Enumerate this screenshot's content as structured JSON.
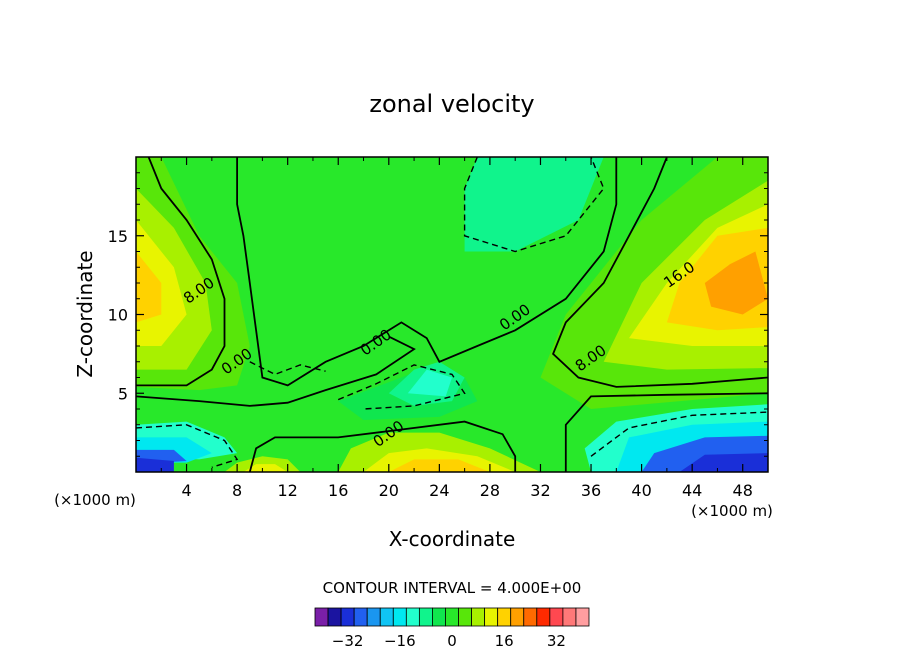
{
  "chart_data": {
    "type": "heatmap",
    "title": "zonal velocity",
    "xlabel": "X-coordinate",
    "ylabel": "Z-coordinate",
    "x_unit_note": "(×1000 m)",
    "x_unit_note_right": "(×1000 m)",
    "xlim": [
      0,
      50
    ],
    "ylim": [
      0,
      20
    ],
    "x_ticks": [
      4,
      8,
      12,
      16,
      20,
      24,
      28,
      32,
      36,
      40,
      44,
      48
    ],
    "x_tick_labels": [
      "4",
      "8",
      "12",
      "16",
      "20",
      "24",
      "28",
      "32",
      "36",
      "40",
      "44",
      "48"
    ],
    "y_ticks": [
      5,
      10,
      15
    ],
    "y_tick_labels": [
      "5",
      "10",
      "15"
    ],
    "contour_interval_text": "CONTOUR INTERVAL = 4.000E+00",
    "contour_labels": [
      {
        "text": "8.00",
        "x": 5.0,
        "y": 11.5
      },
      {
        "text": "0.00",
        "x": 8.0,
        "y": 7.0
      },
      {
        "text": "0.00",
        "x": 19.0,
        "y": 8.2
      },
      {
        "text": "0.00",
        "x": 20.0,
        "y": 2.4
      },
      {
        "text": "0.00",
        "x": 30.0,
        "y": 9.8
      },
      {
        "text": "8.00",
        "x": 36.0,
        "y": 7.2
      },
      {
        "text": "16.0",
        "x": 43.0,
        "y": 12.5
      }
    ],
    "color_levels": [
      -40,
      -36,
      -32,
      -28,
      -24,
      -20,
      -16,
      -12,
      -8,
      -4,
      0,
      4,
      8,
      12,
      16,
      20,
      24,
      28,
      32,
      36,
      40
    ],
    "colorbar_colors": [
      "#7a1fa8",
      "#1b14a0",
      "#1a2fd8",
      "#2160f0",
      "#1a96f0",
      "#10c4f4",
      "#00e8f0",
      "#22ffcc",
      "#10f48c",
      "#10e64e",
      "#28e82a",
      "#58e60a",
      "#a8f000",
      "#e8f400",
      "#ffd200",
      "#ffa000",
      "#ff6a00",
      "#ff2a00",
      "#ff4850",
      "#ff7878",
      "#ff9ea0"
    ],
    "colorbar_tick_labels": [
      "-32",
      "-16",
      "0",
      "16",
      "32"
    ],
    "colorbar_tick_values": [
      -32,
      -16,
      0,
      16,
      32
    ],
    "regions": [
      {
        "level": 4,
        "color": "#28e82a",
        "desc": "background"
      },
      {
        "level": 8,
        "color": "#58e60a",
        "polygon": [
          [
            0,
            20
          ],
          [
            2,
            20
          ],
          [
            5,
            15
          ],
          [
            8,
            12
          ],
          [
            9,
            8
          ],
          [
            8,
            5.5
          ],
          [
            5,
            5.2
          ],
          [
            0,
            5.4
          ]
        ]
      },
      {
        "level": 12,
        "color": "#a8f000",
        "polygon": [
          [
            0,
            18
          ],
          [
            3,
            15.5
          ],
          [
            5.5,
            12
          ],
          [
            6,
            9
          ],
          [
            4,
            6.5
          ],
          [
            0,
            6.5
          ]
        ]
      },
      {
        "level": 16,
        "color": "#e8f400",
        "polygon": [
          [
            0,
            16
          ],
          [
            3,
            13
          ],
          [
            4,
            10
          ],
          [
            2,
            8
          ],
          [
            0,
            8
          ]
        ]
      },
      {
        "level": 20,
        "color": "#ffd200",
        "polygon": [
          [
            0,
            14
          ],
          [
            2,
            12
          ],
          [
            2,
            10
          ],
          [
            0,
            9.5
          ]
        ]
      },
      {
        "level": 8,
        "color": "#58e60a",
        "polygon": [
          [
            50,
            20
          ],
          [
            46,
            20
          ],
          [
            40,
            16
          ],
          [
            34,
            10
          ],
          [
            32,
            6
          ],
          [
            36,
            4
          ],
          [
            50,
            5
          ]
        ]
      },
      {
        "level": 12,
        "color": "#a8f000",
        "polygon": [
          [
            50,
            18.5
          ],
          [
            45,
            16
          ],
          [
            40,
            12
          ],
          [
            37,
            7
          ],
          [
            42,
            6.5
          ],
          [
            50,
            6.6
          ]
        ]
      },
      {
        "level": 16,
        "color": "#e8f400",
        "polygon": [
          [
            50,
            17
          ],
          [
            46,
            15.5
          ],
          [
            42,
            12
          ],
          [
            39,
            8.5
          ],
          [
            44,
            8
          ],
          [
            50,
            8
          ]
        ]
      },
      {
        "level": 20,
        "color": "#ffd200",
        "polygon": [
          [
            50,
            15.5
          ],
          [
            46,
            15
          ],
          [
            43,
            12
          ],
          [
            42,
            9.5
          ],
          [
            46,
            9
          ],
          [
            50,
            9.2
          ]
        ]
      },
      {
        "level": 24,
        "color": "#ffa000",
        "polygon": [
          [
            49,
            14
          ],
          [
            47,
            13.2
          ],
          [
            45,
            12
          ],
          [
            45.5,
            10.5
          ],
          [
            48,
            10
          ],
          [
            50,
            11
          ]
        ]
      },
      {
        "level": 0,
        "color": "#10e64e",
        "polygon": [
          [
            16,
            4.5
          ],
          [
            21,
            6
          ],
          [
            24,
            7
          ],
          [
            26,
            6
          ],
          [
            27,
            4.5
          ],
          [
            24,
            3.5
          ],
          [
            18,
            3.3
          ]
        ]
      },
      {
        "level": -4,
        "color": "#10f48c",
        "polygon": [
          [
            27,
            20
          ],
          [
            37,
            20
          ],
          [
            35,
            16
          ],
          [
            30,
            14
          ],
          [
            26,
            14
          ],
          [
            26,
            18
          ]
        ]
      },
      {
        "level": -4,
        "color": "#10f48c",
        "polygon": [
          [
            20,
            5
          ],
          [
            22,
            6.5
          ],
          [
            24,
            7
          ],
          [
            26,
            6
          ],
          [
            25,
            4.5
          ],
          [
            22,
            4.2
          ]
        ]
      },
      {
        "level": -8,
        "color": "#22ffcc",
        "polygon": [
          [
            21.5,
            5
          ],
          [
            23,
            6.5
          ],
          [
            25,
            6
          ],
          [
            24.5,
            4.8
          ]
        ]
      },
      {
        "level": -8,
        "color": "#22ffcc",
        "polygon": [
          [
            0,
            3
          ],
          [
            4,
            3.2
          ],
          [
            7,
            2.2
          ],
          [
            8,
            1.2
          ],
          [
            5,
            0.8
          ],
          [
            0,
            1
          ]
        ]
      },
      {
        "level": -16,
        "color": "#00e8f0",
        "polygon": [
          [
            0,
            2.2
          ],
          [
            4,
            2.2
          ],
          [
            6,
            1.2
          ],
          [
            4,
            0.6
          ],
          [
            0,
            0.6
          ]
        ]
      },
      {
        "level": -24,
        "color": "#2160f0",
        "polygon": [
          [
            0,
            1.4
          ],
          [
            3,
            1.4
          ],
          [
            4,
            0.7
          ],
          [
            0,
            0.5
          ]
        ]
      },
      {
        "level": -32,
        "color": "#1a2fd8",
        "polygon": [
          [
            0,
            0
          ],
          [
            3,
            0
          ],
          [
            3,
            0.7
          ],
          [
            0,
            0.9
          ]
        ]
      },
      {
        "level": -8,
        "color": "#22ffcc",
        "polygon": [
          [
            36,
            0
          ],
          [
            50,
            0
          ],
          [
            50,
            4.3
          ],
          [
            44,
            4
          ],
          [
            38,
            3.2
          ],
          [
            35.5,
            1.5
          ]
        ]
      },
      {
        "level": -16,
        "color": "#00e8f0",
        "polygon": [
          [
            38,
            0
          ],
          [
            50,
            0
          ],
          [
            50,
            3.2
          ],
          [
            44,
            3
          ],
          [
            39,
            2.2
          ]
        ]
      },
      {
        "level": -24,
        "color": "#2160f0",
        "polygon": [
          [
            40,
            0
          ],
          [
            50,
            0
          ],
          [
            50,
            2.3
          ],
          [
            45,
            2.2
          ],
          [
            41,
            1.2
          ]
        ]
      },
      {
        "level": -32,
        "color": "#1a2fd8",
        "polygon": [
          [
            43,
            0
          ],
          [
            50,
            0
          ],
          [
            50,
            1.2
          ],
          [
            45,
            1.1
          ]
        ]
      },
      {
        "level": 12,
        "color": "#a8f000",
        "polygon": [
          [
            16,
            0
          ],
          [
            32,
            0
          ],
          [
            28,
            1.5
          ],
          [
            24,
            2.5
          ],
          [
            20,
            2.5
          ],
          [
            17,
            1.5
          ]
        ]
      },
      {
        "level": 16,
        "color": "#e8f400",
        "polygon": [
          [
            18,
            0
          ],
          [
            30,
            0
          ],
          [
            27,
            1
          ],
          [
            23,
            1.5
          ],
          [
            20,
            1.2
          ]
        ]
      },
      {
        "level": 20,
        "color": "#ffd200",
        "polygon": [
          [
            20,
            0
          ],
          [
            28,
            0
          ],
          [
            25.5,
            0.8
          ],
          [
            22,
            0.8
          ]
        ]
      },
      {
        "level": 12,
        "color": "#a8f000",
        "polygon": [
          [
            7,
            0
          ],
          [
            13,
            0
          ],
          [
            12,
            0.8
          ],
          [
            10,
            1
          ],
          [
            8,
            0.6
          ]
        ]
      },
      {
        "level": 16,
        "color": "#e8f400",
        "polygon": [
          [
            8.5,
            0
          ],
          [
            12,
            0
          ],
          [
            11,
            0.5
          ],
          [
            9.5,
            0.5
          ]
        ]
      }
    ],
    "contour_lines": [
      {
        "dashed": false,
        "points": [
          [
            1,
            20
          ],
          [
            2,
            18
          ],
          [
            4,
            16
          ],
          [
            6,
            13.5
          ],
          [
            7,
            11
          ],
          [
            7,
            8
          ],
          [
            6,
            6.5
          ],
          [
            4,
            5.5
          ],
          [
            0,
            5.5
          ]
        ]
      },
      {
        "dashed": false,
        "points": [
          [
            8,
            20
          ],
          [
            8,
            17
          ],
          [
            8.5,
            15
          ],
          [
            9,
            12
          ],
          [
            9.5,
            9
          ],
          [
            10,
            6
          ],
          [
            12,
            5.5
          ],
          [
            15,
            7
          ],
          [
            18,
            8
          ],
          [
            21,
            9.5
          ],
          [
            23,
            8.5
          ],
          [
            24,
            7
          ],
          [
            27,
            8
          ],
          [
            30,
            9
          ],
          [
            34,
            11
          ],
          [
            37,
            14
          ],
          [
            38,
            17
          ],
          [
            38,
            20
          ]
        ]
      },
      {
        "dashed": false,
        "points": [
          [
            50,
            6
          ],
          [
            44,
            5.6
          ],
          [
            38,
            5.4
          ],
          [
            35,
            6
          ],
          [
            33,
            7.5
          ],
          [
            34,
            9.5
          ],
          [
            37,
            12
          ],
          [
            39,
            15
          ],
          [
            41,
            18
          ],
          [
            42,
            20
          ]
        ]
      },
      {
        "dashed": false,
        "points": [
          [
            50,
            5
          ],
          [
            42,
            4.9
          ],
          [
            36,
            4.8
          ],
          [
            34,
            3
          ],
          [
            34,
            0
          ]
        ]
      },
      {
        "dashed": false,
        "points": [
          [
            9,
            0
          ],
          [
            9.5,
            1.5
          ],
          [
            11,
            2.2
          ],
          [
            16,
            2.2
          ],
          [
            20,
            2.6
          ],
          [
            26,
            3.2
          ],
          [
            29,
            2.4
          ],
          [
            30,
            1
          ],
          [
            30,
            0
          ]
        ]
      },
      {
        "dashed": false,
        "points": [
          [
            0,
            4.8
          ],
          [
            5,
            4.5
          ],
          [
            9,
            4.2
          ],
          [
            12,
            4.4
          ],
          [
            15,
            5.2
          ],
          [
            19,
            6.2
          ],
          [
            22,
            7.8
          ],
          [
            20,
            8.6
          ]
        ]
      },
      {
        "dashed": true,
        "points": [
          [
            16,
            4.6
          ],
          [
            19,
            5.6
          ],
          [
            22,
            6.8
          ],
          [
            25,
            6.2
          ],
          [
            26,
            5
          ],
          [
            22,
            4.2
          ],
          [
            18,
            4
          ]
        ]
      },
      {
        "dashed": true,
        "points": [
          [
            27,
            20
          ],
          [
            26,
            18
          ],
          [
            26,
            15
          ],
          [
            30,
            14
          ],
          [
            34,
            15
          ],
          [
            37,
            18
          ],
          [
            36,
            20
          ]
        ]
      },
      {
        "dashed": true,
        "points": [
          [
            0,
            2.8
          ],
          [
            4,
            3
          ],
          [
            7,
            2
          ],
          [
            8,
            0.8
          ],
          [
            6,
            0.3
          ]
        ]
      },
      {
        "dashed": true,
        "points": [
          [
            36,
            1
          ],
          [
            39,
            2.8
          ],
          [
            44,
            3.6
          ],
          [
            50,
            3.8
          ]
        ]
      },
      {
        "dashed": true,
        "points": [
          [
            9,
            7
          ],
          [
            11,
            6.2
          ],
          [
            13,
            6.8
          ],
          [
            15,
            6.4
          ]
        ]
      }
    ]
  }
}
